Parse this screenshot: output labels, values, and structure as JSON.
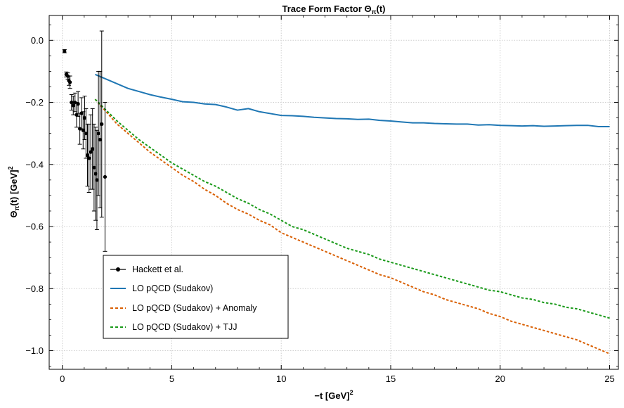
{
  "chart_data": {
    "type": "line",
    "title": "Trace Form Factor Θπ(t)",
    "title_main": "Trace Form Factor Θ",
    "title_sub": "π",
    "title_tail": "(t)",
    "xlabel_main": "−t [GeV]",
    "xlabel_sup": "2",
    "ylabel_main": "Θ",
    "ylabel_sub": "π",
    "ylabel_mid": "(t)  [GeV]",
    "ylabel_sup": "2",
    "xlim": [
      -0.6,
      25.4
    ],
    "ylim": [
      -1.06,
      0.08
    ],
    "xticks": [
      0,
      5,
      10,
      15,
      20,
      25
    ],
    "xtick_labels": [
      "0",
      "5",
      "10",
      "15",
      "20",
      "25"
    ],
    "yticks": [
      0.0,
      -0.2,
      -0.4,
      -0.6,
      -0.8,
      -1.0
    ],
    "ytick_labels": [
      "0.0",
      "−0.2",
      "−0.4",
      "−0.6",
      "−0.8",
      "−1.0"
    ],
    "grid": true,
    "legend_position": "bottom-left",
    "legend": [
      {
        "label": "Hackett et al.",
        "style": "marker",
        "color": "#000000"
      },
      {
        "label": "LO pQCD (Sudakov)",
        "style": "solid",
        "color": "#1f77b4"
      },
      {
        "label": "LO pQCD (Sudakov) + Anomaly",
        "style": "dashed",
        "color": "#d95f02"
      },
      {
        "label": "LO pQCD (Sudakov) + TJJ",
        "style": "dashed",
        "color": "#1a9a1a"
      }
    ],
    "series": [
      {
        "name": "LO pQCD (Sudakov)",
        "color": "#1f77b4",
        "style": "solid",
        "x": [
          1.5,
          2.0,
          2.5,
          3.0,
          3.5,
          4.0,
          4.5,
          5.0,
          5.5,
          6.0,
          6.5,
          7.0,
          7.5,
          8.0,
          8.5,
          9.0,
          9.5,
          10.0,
          10.5,
          11.0,
          11.5,
          12.0,
          12.5,
          13.0,
          13.5,
          14.0,
          14.5,
          15.0,
          15.5,
          16.0,
          16.5,
          17.0,
          17.5,
          18.0,
          18.5,
          19.0,
          19.5,
          20.0,
          20.5,
          21.0,
          21.5,
          22.0,
          22.5,
          23.0,
          23.5,
          24.0,
          24.5,
          25.0
        ],
        "y": [
          -0.11,
          -0.125,
          -0.14,
          -0.155,
          -0.165,
          -0.175,
          -0.183,
          -0.19,
          -0.198,
          -0.2,
          -0.205,
          -0.207,
          -0.215,
          -0.225,
          -0.22,
          -0.23,
          -0.236,
          -0.242,
          -0.243,
          -0.245,
          -0.248,
          -0.25,
          -0.252,
          -0.253,
          -0.255,
          -0.254,
          -0.258,
          -0.26,
          -0.263,
          -0.266,
          -0.266,
          -0.268,
          -0.269,
          -0.27,
          -0.27,
          -0.273,
          -0.272,
          -0.274,
          -0.275,
          -0.276,
          -0.275,
          -0.277,
          -0.276,
          -0.275,
          -0.274,
          -0.274,
          -0.278,
          -0.278
        ]
      },
      {
        "name": "LO pQCD (Sudakov) + Anomaly",
        "color": "#d95f02",
        "style": "dashed",
        "x": [
          1.5,
          2.0,
          2.5,
          3.0,
          3.5,
          4.0,
          4.5,
          5.0,
          5.5,
          6.0,
          6.5,
          7.0,
          7.5,
          8.0,
          8.5,
          9.0,
          9.5,
          10.0,
          10.5,
          11.0,
          11.5,
          12.0,
          12.5,
          13.0,
          13.5,
          14.0,
          14.5,
          15.0,
          15.5,
          16.0,
          16.5,
          17.0,
          17.5,
          18.0,
          18.5,
          19.0,
          19.5,
          20.0,
          20.5,
          21.0,
          21.5,
          22.0,
          22.5,
          23.0,
          23.5,
          24.0,
          24.5,
          25.0
        ],
        "y": [
          -0.19,
          -0.23,
          -0.27,
          -0.3,
          -0.33,
          -0.36,
          -0.385,
          -0.41,
          -0.435,
          -0.455,
          -0.48,
          -0.5,
          -0.525,
          -0.545,
          -0.56,
          -0.58,
          -0.595,
          -0.62,
          -0.635,
          -0.65,
          -0.665,
          -0.68,
          -0.695,
          -0.71,
          -0.725,
          -0.74,
          -0.755,
          -0.765,
          -0.78,
          -0.795,
          -0.81,
          -0.82,
          -0.835,
          -0.845,
          -0.855,
          -0.865,
          -0.88,
          -0.89,
          -0.905,
          -0.915,
          -0.925,
          -0.935,
          -0.945,
          -0.955,
          -0.965,
          -0.98,
          -0.995,
          -1.01
        ]
      },
      {
        "name": "LO pQCD (Sudakov) + TJJ",
        "color": "#1a9a1a",
        "style": "dashed",
        "x": [
          1.5,
          2.0,
          2.5,
          3.0,
          3.5,
          4.0,
          4.5,
          5.0,
          5.5,
          6.0,
          6.5,
          7.0,
          7.5,
          8.0,
          8.5,
          9.0,
          9.5,
          10.0,
          10.5,
          11.0,
          11.5,
          12.0,
          12.5,
          13.0,
          13.5,
          14.0,
          14.5,
          15.0,
          15.5,
          16.0,
          16.5,
          17.0,
          17.5,
          18.0,
          18.5,
          19.0,
          19.5,
          20.0,
          20.5,
          21.0,
          21.5,
          22.0,
          22.5,
          23.0,
          23.5,
          24.0,
          24.5,
          25.0
        ],
        "y": [
          -0.19,
          -0.225,
          -0.26,
          -0.29,
          -0.32,
          -0.345,
          -0.37,
          -0.395,
          -0.415,
          -0.435,
          -0.455,
          -0.47,
          -0.49,
          -0.51,
          -0.525,
          -0.545,
          -0.56,
          -0.58,
          -0.6,
          -0.61,
          -0.625,
          -0.64,
          -0.655,
          -0.67,
          -0.68,
          -0.69,
          -0.705,
          -0.715,
          -0.725,
          -0.735,
          -0.745,
          -0.755,
          -0.765,
          -0.775,
          -0.785,
          -0.795,
          -0.805,
          -0.81,
          -0.82,
          -0.83,
          -0.835,
          -0.845,
          -0.85,
          -0.86,
          -0.865,
          -0.875,
          -0.885,
          -0.895
        ]
      },
      {
        "name": "Hackett et al.",
        "color": "#000000",
        "style": "errorbar",
        "points": [
          {
            "x": 0.1,
            "y": -0.035,
            "err": 0.005
          },
          {
            "x": 0.18,
            "y": -0.11,
            "err": 0.008
          },
          {
            "x": 0.25,
            "y": -0.115,
            "err": 0.01
          },
          {
            "x": 0.3,
            "y": -0.13,
            "err": 0.015
          },
          {
            "x": 0.35,
            "y": -0.135,
            "err": 0.02
          },
          {
            "x": 0.42,
            "y": -0.2,
            "err": 0.025
          },
          {
            "x": 0.5,
            "y": -0.21,
            "err": 0.03
          },
          {
            "x": 0.58,
            "y": -0.2,
            "err": 0.03
          },
          {
            "x": 0.65,
            "y": -0.24,
            "err": 0.04
          },
          {
            "x": 0.72,
            "y": -0.205,
            "err": 0.04
          },
          {
            "x": 0.8,
            "y": -0.285,
            "err": 0.05
          },
          {
            "x": 0.88,
            "y": -0.235,
            "err": 0.05
          },
          {
            "x": 0.95,
            "y": -0.29,
            "err": 0.06
          },
          {
            "x": 1.02,
            "y": -0.25,
            "err": 0.07
          },
          {
            "x": 1.08,
            "y": -0.3,
            "err": 0.08
          },
          {
            "x": 1.15,
            "y": -0.37,
            "err": 0.1
          },
          {
            "x": 1.22,
            "y": -0.38,
            "err": 0.11
          },
          {
            "x": 1.3,
            "y": -0.36,
            "err": 0.12
          },
          {
            "x": 1.38,
            "y": -0.35,
            "err": 0.13
          },
          {
            "x": 1.45,
            "y": -0.41,
            "err": 0.14
          },
          {
            "x": 1.52,
            "y": -0.43,
            "err": 0.15
          },
          {
            "x": 1.58,
            "y": -0.45,
            "err": 0.16
          },
          {
            "x": 1.65,
            "y": -0.3,
            "err": 0.2
          },
          {
            "x": 1.72,
            "y": -0.32,
            "err": 0.22
          },
          {
            "x": 1.8,
            "y": -0.27,
            "err": 0.3
          },
          {
            "x": 1.95,
            "y": -0.44,
            "err": 0.24
          }
        ]
      }
    ]
  }
}
